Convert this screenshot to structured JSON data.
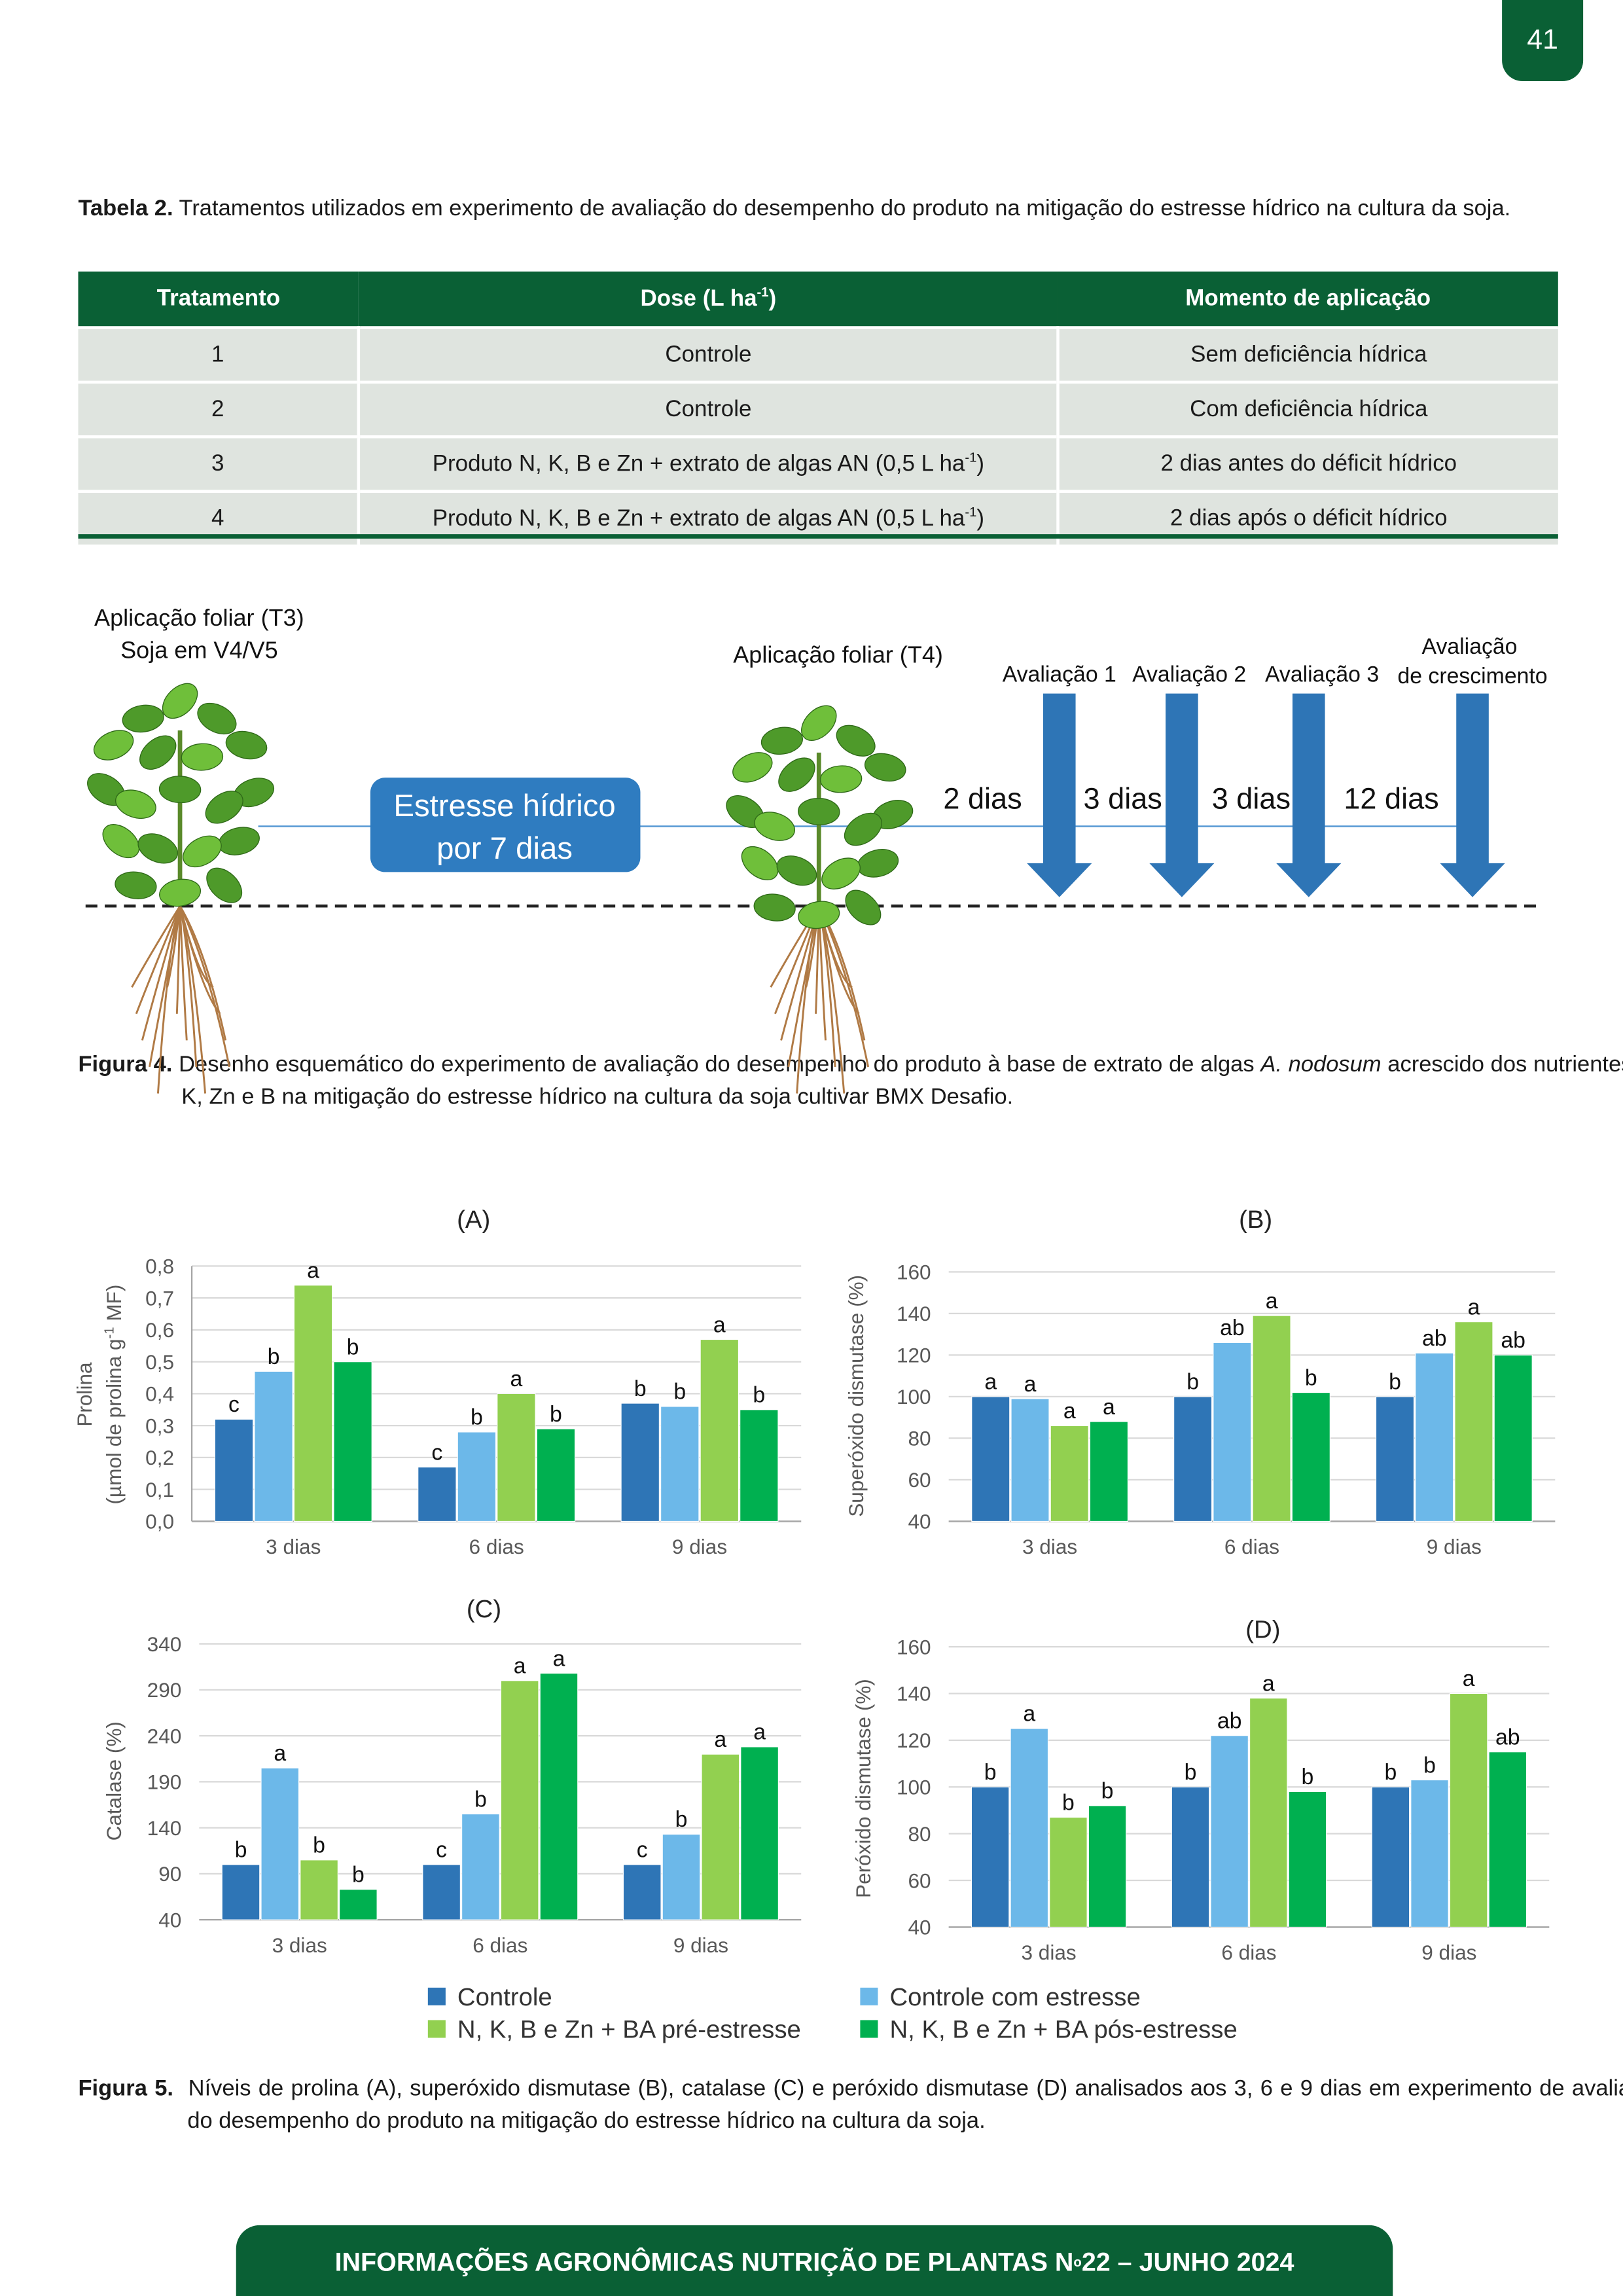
{
  "page_number": "41",
  "table": {
    "caption_label": "Tabela 2.",
    "caption": "Tratamentos utilizados em experimento de avaliação do desempenho do produto na mitigação do estresse hídrico na cultura da soja.",
    "headers": [
      "Tratamento",
      {
        "text": "Dose (L ha",
        "sup": "-1",
        "after": ")"
      },
      "Momento de aplicação"
    ],
    "rows": [
      [
        "1",
        "Controle",
        "Sem deficiência hídrica"
      ],
      [
        "2",
        "Controle",
        "Com deficiência hídrica"
      ],
      [
        "3",
        {
          "text": "Produto N, K, B e Zn + extrato de algas AN (0,5 L ha",
          "sup": "-1",
          "after": ")"
        },
        "2 dias antes do déficit hídrico"
      ],
      [
        "4",
        {
          "text": "Produto N, K, B e Zn + extrato de algas AN (0,5 L ha",
          "sup": "-1",
          "after": ")"
        },
        "2 dias após o déficit hídrico"
      ]
    ]
  },
  "figure4": {
    "t3_line1": "Aplicação foliar (T3)",
    "t3_line2": "Soja em V4/V5",
    "stress_line1": "Estresse hídrico",
    "stress_line2": "por 7 dias",
    "t4": "Aplicação foliar (T4)",
    "intervals": [
      "2 dias",
      "3 dias",
      "3 dias",
      "12 dias"
    ],
    "evaluations": [
      "Avaliação 1",
      "Avaliação 2",
      "Avaliação 3"
    ],
    "growth_line1": "Avaliação",
    "growth_line2": "de crescimento",
    "caption_label": "Figura 4.",
    "caption_before": "Desenho esquemático do experimento de avaliação do desempenho do produto à base de extrato de algas ",
    "caption_italic": "A. nodosum",
    "caption_after": " acrescido dos nutrientes N, K, Zn e B na mitigação do estresse hídrico na cultura da soja cultivar BMX Desafio."
  },
  "chart_data": [
    {
      "type": "bar",
      "title": "(A)",
      "ylabel": "Prolina",
      "ylabel2": "(µmol de prolina g",
      "ylabel2_sup": "-1",
      "ylabel2_end": " MF)",
      "categories": [
        "3 dias",
        "6 dias",
        "9 dias"
      ],
      "ylim": [
        0,
        0.8
      ],
      "yticks": [
        {
          "value": 0,
          "label": "0,0"
        },
        {
          "value": 0.1,
          "label": "0,1"
        },
        {
          "value": 0.2,
          "label": "0,2"
        },
        {
          "value": 0.3,
          "label": "0,3"
        },
        {
          "value": 0.4,
          "label": "0,4"
        },
        {
          "value": 0.5,
          "label": "0,5"
        },
        {
          "value": 0.6,
          "label": "0,6"
        },
        {
          "value": 0.7,
          "label": "0,7"
        },
        {
          "value": 0.8,
          "label": "0,8"
        }
      ],
      "grid": true,
      "series": [
        {
          "name": "Controle",
          "color": "#2e75b6",
          "values": [
            0.32,
            0.17,
            0.37
          ],
          "letters": [
            "c",
            "c",
            "b"
          ]
        },
        {
          "name": "Controle com estresse",
          "color": "#6cb8e9",
          "values": [
            0.47,
            0.28,
            0.36
          ],
          "letters": [
            "b",
            "b",
            "b"
          ]
        },
        {
          "name": "N, K, B e Zn + BA pré-estresse",
          "color": "#92d050",
          "values": [
            0.74,
            0.4,
            0.57
          ],
          "letters": [
            "a",
            "a",
            "a"
          ]
        },
        {
          "name": "N, K, B e Zn + BA pós-estresse",
          "color": "#00b050",
          "values": [
            0.5,
            0.29,
            0.35
          ],
          "letters": [
            "b",
            "b",
            "b"
          ]
        }
      ]
    },
    {
      "type": "bar",
      "title": "(B)",
      "ylabel": "Superóxido  dismutase  (%)",
      "categories": [
        "3 dias",
        "6 dias",
        "9 dias"
      ],
      "ylim": [
        40,
        160
      ],
      "yticks": [
        40,
        60,
        80,
        100,
        120,
        140,
        160
      ],
      "grid": true,
      "series": [
        {
          "color": "#2e75b6",
          "values": [
            100,
            100,
            100
          ],
          "letters": [
            "a",
            "b",
            "b"
          ]
        },
        {
          "color": "#6cb8e9",
          "values": [
            99,
            126,
            121
          ],
          "letters": [
            "a",
            "ab",
            "ab"
          ]
        },
        {
          "color": "#92d050",
          "values": [
            86,
            139,
            136
          ],
          "letters": [
            "a",
            "a",
            "a"
          ]
        },
        {
          "color": "#00b050",
          "values": [
            88,
            102,
            120
          ],
          "letters": [
            "a",
            "b",
            "ab"
          ]
        }
      ]
    },
    {
      "type": "bar",
      "title": "(C)",
      "ylabel": "Catalase  (%)",
      "categories": [
        "3 dias",
        "6 dias",
        "9 dias"
      ],
      "ylim": [
        40,
        340
      ],
      "yticks": [
        40,
        90,
        140,
        190,
        240,
        290,
        340
      ],
      "grid": true,
      "series": [
        {
          "color": "#2e75b6",
          "values": [
            100,
            100,
            100
          ],
          "letters": [
            "b",
            "c",
            "c"
          ]
        },
        {
          "color": "#6cb8e9",
          "values": [
            205,
            155,
            133
          ],
          "letters": [
            "a",
            "b",
            "b"
          ]
        },
        {
          "color": "#92d050",
          "values": [
            105,
            300,
            220
          ],
          "letters": [
            "b",
            "a",
            "a"
          ]
        },
        {
          "color": "#00b050",
          "values": [
            73,
            308,
            228
          ],
          "letters": [
            "b",
            "a",
            "a"
          ]
        }
      ]
    },
    {
      "type": "bar",
      "title": "(D)",
      "ylabel": "Peróxido  dismutase  (%)",
      "categories": [
        "3 dias",
        "6 dias",
        "9 dias"
      ],
      "ylim": [
        40,
        160
      ],
      "yticks": [
        40,
        60,
        80,
        100,
        120,
        140,
        160
      ],
      "grid": true,
      "series": [
        {
          "color": "#2e75b6",
          "values": [
            100,
            100,
            100
          ],
          "letters": [
            "b",
            "b",
            "b"
          ]
        },
        {
          "color": "#6cb8e9",
          "values": [
            125,
            122,
            103
          ],
          "letters": [
            "a",
            "ab",
            "b"
          ]
        },
        {
          "color": "#92d050",
          "values": [
            87,
            138,
            140
          ],
          "letters": [
            "b",
            "a",
            "a"
          ]
        },
        {
          "color": "#00b050",
          "values": [
            92,
            98,
            115
          ],
          "letters": [
            "b",
            "b",
            "ab"
          ]
        }
      ]
    }
  ],
  "figure5": {
    "caption_label": "Figura 5.",
    "caption": "Níveis de prolina (A), superóxido dismutase (B), catalase (C) e peróxido dismutase (D) analisados aos 3, 6 e 9 dias em experimento de avaliação do desempenho do produto na mitigação do estresse hídrico na cultura da soja."
  },
  "footer": {
    "text": "INFORMAÇÕES AGRONÔMICAS NUTRIÇÃO DE PLANTAS N",
    "sup": "o",
    "after": " 22 – JUNHO 2024"
  }
}
